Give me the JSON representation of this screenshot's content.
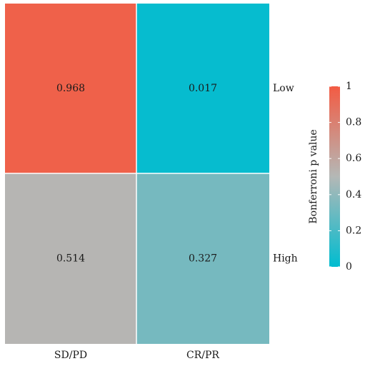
{
  "chart_data": {
    "type": "heatmap",
    "columns": [
      "SD/PD",
      "CR/PR"
    ],
    "rows": [
      "Low",
      "High"
    ],
    "values": [
      [
        0.968,
        0.017
      ],
      [
        0.514,
        0.327
      ]
    ],
    "cell_labels": [
      [
        "0.968",
        "0.017"
      ],
      [
        "0.514",
        "0.327"
      ]
    ],
    "colorbar": {
      "label": "Bonferroni p value",
      "range": [
        0,
        1
      ],
      "ticks": [
        0,
        0.2,
        0.4,
        0.6,
        0.8,
        1
      ],
      "tick_labels": [
        "0",
        "0.2",
        "0.4",
        "0.6",
        "0.8",
        "1"
      ],
      "colors": {
        "low": "#00bcd0",
        "mid": "#b4b8b6",
        "high": "#f35b43"
      }
    }
  }
}
